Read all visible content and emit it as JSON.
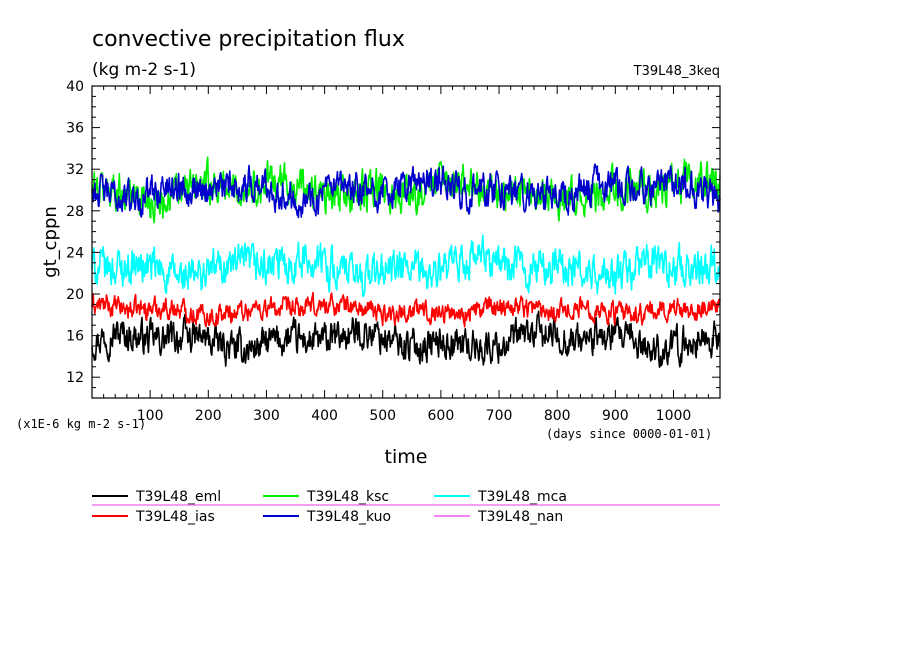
{
  "chart_data": {
    "type": "line",
    "title": "convective precipitation flux",
    "subtitle": "(kg m-2 s-1)",
    "top_right_label": "T39L48_3keq",
    "ylabel": "gt_cppn",
    "xlabel": "time",
    "y_unit_note": "(x1E-6 kg m-2 s-1)",
    "x_unit_note": "(days since 0000-01-01)",
    "xlim": [
      0,
      1080
    ],
    "ylim": [
      10,
      40
    ],
    "x_ticks": [
      100,
      200,
      300,
      400,
      500,
      600,
      700,
      800,
      900,
      1000
    ],
    "y_ticks": [
      12,
      16,
      20,
      24,
      28,
      32,
      36,
      40
    ],
    "legend_position": "bottom",
    "series": [
      {
        "name": "T39L48_eml",
        "color": "#000000",
        "mean": 15.5,
        "amplitude": 1.4
      },
      {
        "name": "T39L48_ias",
        "color": "#ff0000",
        "mean": 18.5,
        "amplitude": 0.9
      },
      {
        "name": "T39L48_ksc",
        "color": "#00ee00",
        "mean": 30.0,
        "amplitude": 1.6
      },
      {
        "name": "T39L48_kuo",
        "color": "#0000cc",
        "mean": 30.0,
        "amplitude": 1.4
      },
      {
        "name": "T39L48_mca",
        "color": "#00ffff",
        "mean": 22.5,
        "amplitude": 1.6
      },
      {
        "name": "T39L48_nan",
        "color": "#ee82ee",
        "mean": null,
        "amplitude": 0
      }
    ]
  }
}
